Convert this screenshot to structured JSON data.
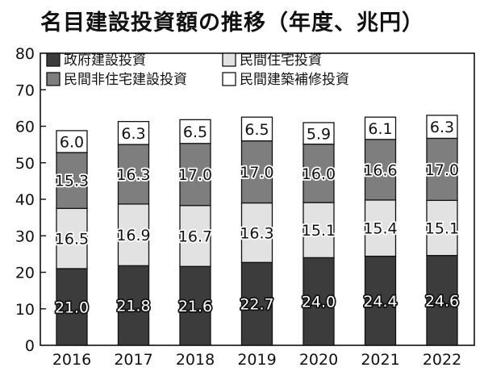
{
  "chart_data": {
    "type": "bar",
    "stacked": true,
    "title": "名目建設投資額の推移（年度、兆円）",
    "categories": [
      "2016",
      "2017",
      "2018",
      "2019",
      "2020",
      "2021",
      "2022"
    ],
    "series": [
      {
        "name": "政府建設投資",
        "values": [
          21.0,
          21.8,
          21.6,
          22.7,
          24.0,
          24.4,
          24.6
        ],
        "labels": [
          "21.0",
          "21.8",
          "21.6",
          "22.7",
          "24.0",
          "24.4",
          "24.6"
        ],
        "color": "#3c3c3c"
      },
      {
        "name": "民間住宅投資",
        "values": [
          16.5,
          16.9,
          16.7,
          16.3,
          15.1,
          15.4,
          15.1
        ],
        "labels": [
          "16.5",
          "16.9",
          "16.7",
          "16.3",
          "15.1",
          "15.4",
          "15.1"
        ],
        "color": "#e2e2e2"
      },
      {
        "name": "民間非住宅建設投資",
        "values": [
          15.3,
          16.3,
          17.0,
          17.0,
          16.0,
          16.6,
          17.0
        ],
        "labels": [
          "15.3",
          "16.3",
          "17.0",
          "17.0",
          "16.0",
          "16.6",
          "17.0"
        ],
        "color": "#7e7e7e"
      },
      {
        "name": "民間建築補修投資",
        "values": [
          6.0,
          6.3,
          6.5,
          6.5,
          5.9,
          6.1,
          6.3
        ],
        "labels": [
          "6.0",
          "6.3",
          "6.5",
          "6.5",
          "5.9",
          "6.1",
          "6.3"
        ],
        "color": "#ffffff"
      }
    ],
    "ylim": [
      0,
      80
    ],
    "yticks": [
      "0",
      "10",
      "20",
      "30",
      "40",
      "50",
      "60",
      "70",
      "80"
    ],
    "xlabel": "",
    "ylabel": "",
    "legend_position": "top-left",
    "grid": false
  }
}
